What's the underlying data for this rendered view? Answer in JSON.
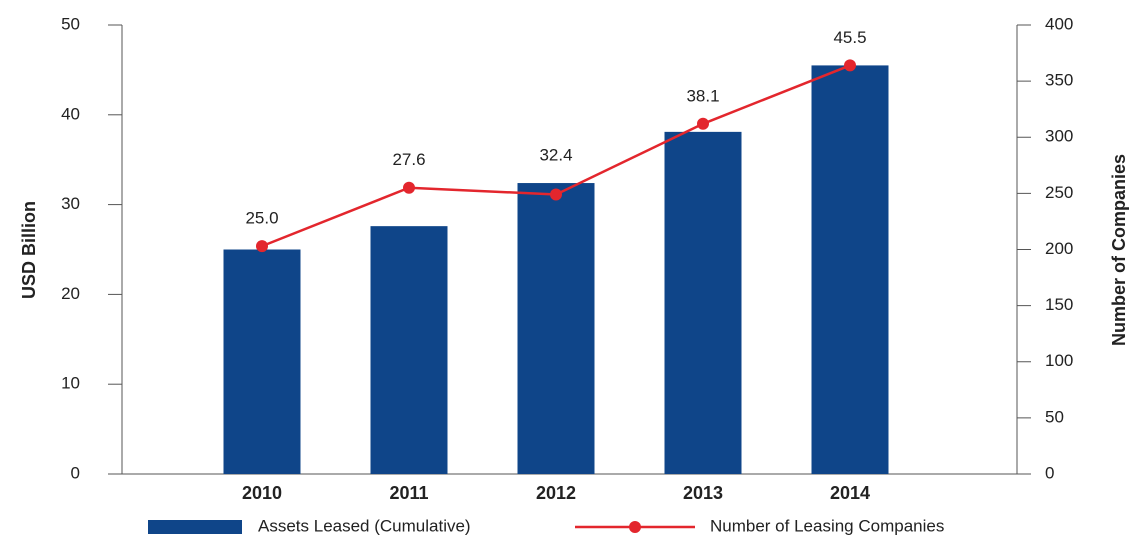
{
  "chart_data": {
    "type": "bar_line",
    "categories": [
      "2010",
      "2011",
      "2012",
      "2013",
      "2014"
    ],
    "series": [
      {
        "name": "Assets Leased (Cumulative)",
        "type": "bar",
        "color": "#0f4589",
        "values": [
          25,
          27.6,
          32.4,
          38.1,
          45.5
        ],
        "value_labels": [
          "25.0",
          "27.6",
          "32.4",
          "38.1",
          "45.5"
        ]
      },
      {
        "name": "Number of Leasing Companies",
        "type": "line",
        "axis": "y2",
        "color": "#e3262d",
        "values": [
          203,
          255,
          249,
          312,
          364
        ]
      }
    ],
    "ylabel": "USD Billion",
    "y2label": "Number of Companies",
    "ylim": [
      0,
      50
    ],
    "yticks": [
      0,
      10,
      20,
      30,
      40,
      50
    ],
    "y2lim": [
      0,
      400
    ],
    "y2ticks": [
      0,
      50,
      100,
      150,
      200,
      250,
      300,
      350,
      400
    ],
    "legend": "bottom"
  }
}
